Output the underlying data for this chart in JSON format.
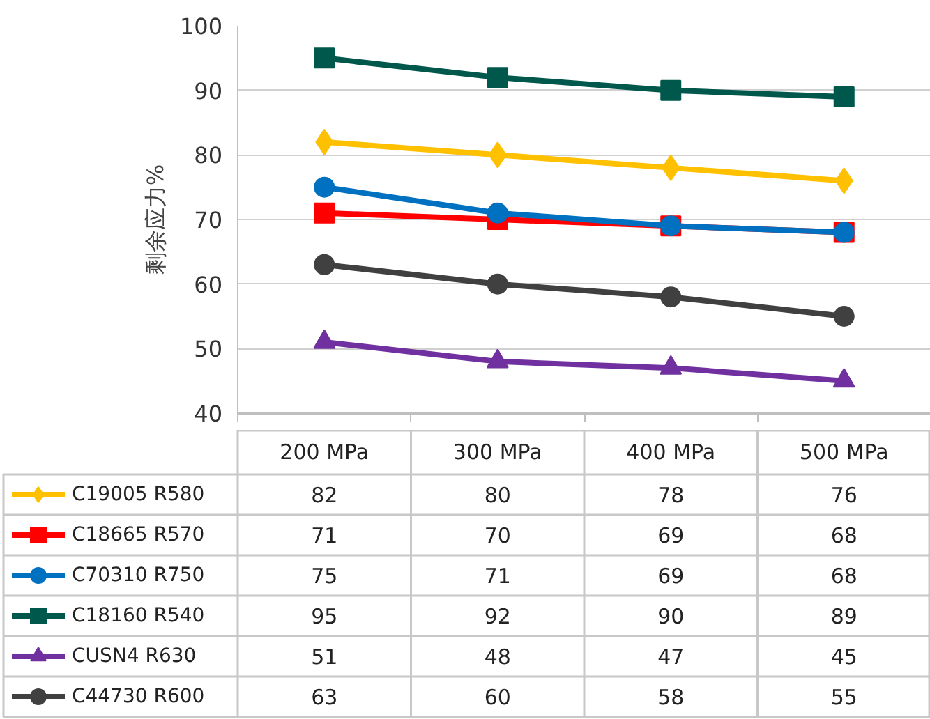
{
  "chart_data": {
    "type": "line",
    "ylabel": "剩余应力%",
    "categories": [
      "200 MPa",
      "300 MPa",
      "400 MPa",
      "500 MPa"
    ],
    "series": [
      {
        "name": "C19005 R580",
        "color": "#ffc000",
        "marker": "diamond",
        "values": [
          82,
          80,
          78,
          76
        ]
      },
      {
        "name": "C18665 R570",
        "color": "#ff0000",
        "marker": "square",
        "values": [
          71,
          70,
          69,
          68
        ]
      },
      {
        "name": "C70310 R750",
        "color": "#0070c0",
        "marker": "circle",
        "values": [
          75,
          71,
          69,
          68
        ]
      },
      {
        "name": "C18160 R540",
        "color": "#00574b",
        "marker": "square",
        "values": [
          95,
          92,
          90,
          89
        ]
      },
      {
        "name": "CUSN4 R630",
        "color": "#7030a0",
        "marker": "triangle",
        "values": [
          51,
          48,
          47,
          45
        ]
      },
      {
        "name": "C44730 R600",
        "color": "#404040",
        "marker": "circle",
        "values": [
          63,
          60,
          58,
          55
        ]
      }
    ],
    "ylim": [
      40,
      100
    ],
    "yticks": [
      40,
      50,
      60,
      70,
      80,
      90,
      100
    ],
    "grid": "y",
    "legend": "bottom",
    "data_labels": true,
    "tick_labels": "y",
    "line_style": "solid"
  }
}
